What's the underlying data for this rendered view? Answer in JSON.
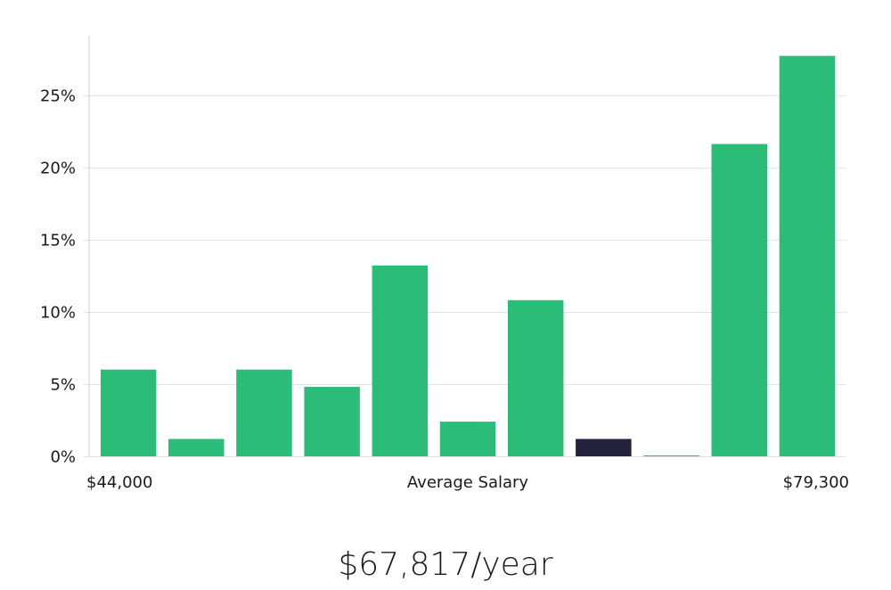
{
  "chart_data": {
    "type": "bar",
    "bins": 11,
    "values": [
      6.0,
      1.2,
      6.0,
      4.8,
      13.2,
      2.4,
      10.8,
      1.2,
      0.05,
      21.6,
      27.7
    ],
    "highlight_index": 7,
    "ylim": [
      0,
      29
    ],
    "yticks": [
      0,
      5,
      10,
      15,
      20,
      25
    ],
    "ytick_format": "percent",
    "grid": true,
    "x_min_label": "$44,000",
    "x_center_label": "Average Salary",
    "x_max_label": "$79,300"
  },
  "colors": {
    "bar": "#2bbd77",
    "highlight": "#25223f",
    "grid": "#e3e3e3",
    "axis": "#cfcfcf"
  },
  "salary_text": "$67,817/year"
}
